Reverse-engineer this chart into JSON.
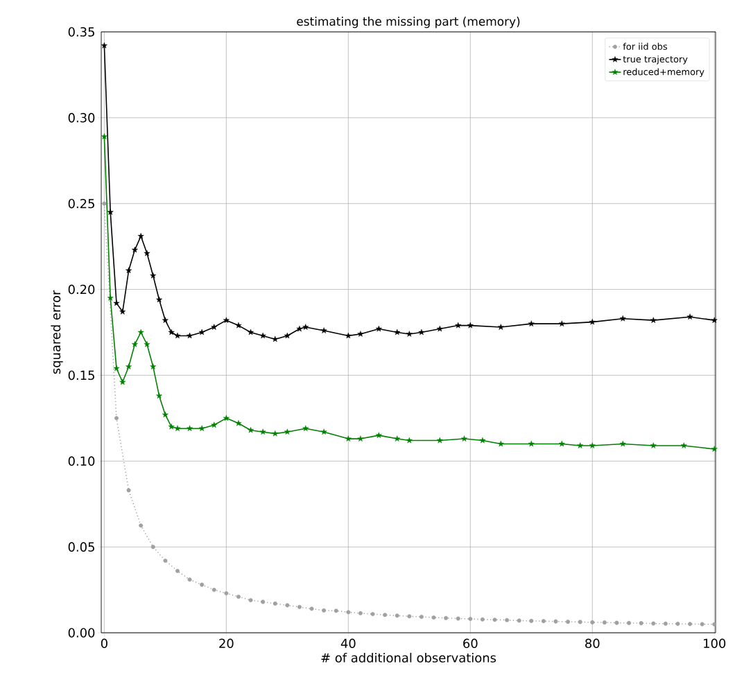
{
  "chart_data": {
    "type": "line",
    "title": "estimating the missing part (memory)",
    "xlabel": "# of additional observations",
    "ylabel": "squared error",
    "xlim": [
      -0.5,
      100.2
    ],
    "ylim": [
      0,
      0.35
    ],
    "xticks": [
      0,
      20,
      40,
      60,
      80,
      100
    ],
    "yticks": [
      {
        "value": 0,
        "label": "0.00"
      },
      {
        "value": 0.05,
        "label": "0.05"
      },
      {
        "value": 0.1,
        "label": "0.10"
      },
      {
        "value": 0.15,
        "label": "0.15"
      },
      {
        "value": 0.2,
        "label": "0.20"
      },
      {
        "value": 0.25,
        "label": "0.25"
      },
      {
        "value": 0.3,
        "label": "0.30"
      },
      {
        "value": 0.35,
        "label": "0.35"
      }
    ],
    "grid": true,
    "legend": "top right",
    "series": [
      {
        "name": "for iid obs",
        "color": "#a0a0a0",
        "marker": "circle",
        "line_style": "dotted",
        "x": [
          0,
          2,
          4,
          6,
          8,
          10,
          12,
          14,
          16,
          18,
          20,
          22,
          24,
          26,
          28,
          30,
          32,
          34,
          36,
          38,
          40,
          42,
          44,
          46,
          48,
          50,
          52,
          54,
          56,
          58,
          60,
          62,
          64,
          66,
          68,
          70,
          72,
          74,
          76,
          78,
          80,
          82,
          84,
          86,
          88,
          90,
          92,
          94,
          96,
          98,
          100
        ],
        "values": [
          0.25,
          0.125,
          0.083,
          0.0625,
          0.05,
          0.042,
          0.036,
          0.031,
          0.028,
          0.025,
          0.023,
          0.021,
          0.019,
          0.018,
          0.017,
          0.016,
          0.015,
          0.014,
          0.013,
          0.0128,
          0.012,
          0.0114,
          0.0109,
          0.0104,
          0.01,
          0.0096,
          0.0093,
          0.0089,
          0.0086,
          0.0083,
          0.0081,
          0.0078,
          0.0076,
          0.0074,
          0.0071,
          0.0069,
          0.0068,
          0.0066,
          0.0064,
          0.0063,
          0.0061,
          0.006,
          0.0058,
          0.0057,
          0.0056,
          0.0054,
          0.0053,
          0.0052,
          0.0051,
          0.005,
          0.0049
        ]
      },
      {
        "name": "true trajectory",
        "color": "#000000",
        "marker": "star",
        "line_style": "solid",
        "x": [
          0,
          1,
          2,
          3,
          4,
          5,
          6,
          7,
          8,
          9,
          10,
          11,
          12,
          14,
          16,
          18,
          20,
          22,
          24,
          26,
          28,
          30,
          32,
          33,
          36,
          40,
          42,
          45,
          48,
          50,
          52,
          55,
          58,
          60,
          65,
          70,
          75,
          80,
          85,
          90,
          96,
          100
        ],
        "values": [
          0.342,
          0.245,
          0.192,
          0.187,
          0.211,
          0.223,
          0.231,
          0.221,
          0.208,
          0.194,
          0.182,
          0.175,
          0.173,
          0.173,
          0.175,
          0.178,
          0.182,
          0.179,
          0.175,
          0.173,
          0.171,
          0.173,
          0.177,
          0.178,
          0.176,
          0.173,
          0.174,
          0.177,
          0.175,
          0.174,
          0.175,
          0.177,
          0.179,
          0.179,
          0.178,
          0.18,
          0.18,
          0.181,
          0.183,
          0.182,
          0.184,
          0.182
        ]
      },
      {
        "name": "reduced+memory",
        "color": "#008000",
        "marker": "star",
        "line_style": "solid",
        "x": [
          0,
          1,
          2,
          3,
          4,
          5,
          6,
          7,
          8,
          9,
          10,
          11,
          12,
          14,
          16,
          18,
          20,
          22,
          24,
          26,
          28,
          30,
          33,
          36,
          40,
          42,
          45,
          48,
          50,
          55,
          59,
          62,
          65,
          70,
          75,
          78,
          80,
          85,
          90,
          95,
          100
        ],
        "values": [
          0.289,
          0.195,
          0.154,
          0.146,
          0.155,
          0.168,
          0.175,
          0.168,
          0.155,
          0.138,
          0.127,
          0.12,
          0.119,
          0.119,
          0.119,
          0.121,
          0.125,
          0.122,
          0.118,
          0.117,
          0.116,
          0.117,
          0.119,
          0.117,
          0.113,
          0.113,
          0.115,
          0.113,
          0.112,
          0.112,
          0.113,
          0.112,
          0.11,
          0.11,
          0.11,
          0.109,
          0.109,
          0.11,
          0.109,
          0.109,
          0.107
        ]
      }
    ]
  }
}
